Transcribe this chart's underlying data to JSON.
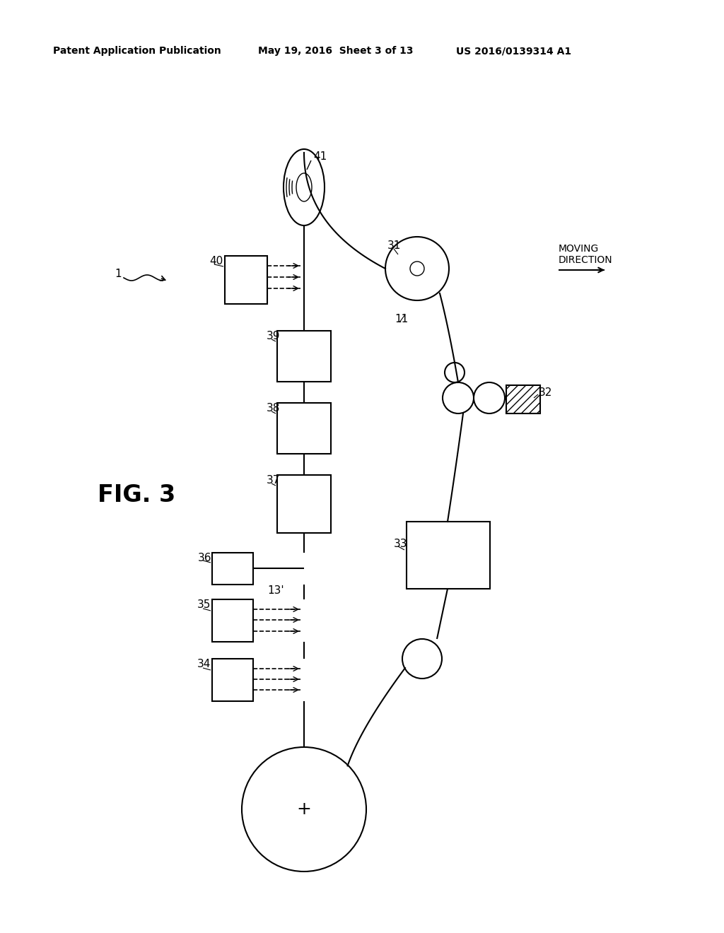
{
  "background_color": "#ffffff",
  "header_left": "Patent Application Publication",
  "header_center": "May 19, 2016  Sheet 3 of 13",
  "header_right": "US 2016/0139314 A1",
  "fig_label": "FIG. 3"
}
